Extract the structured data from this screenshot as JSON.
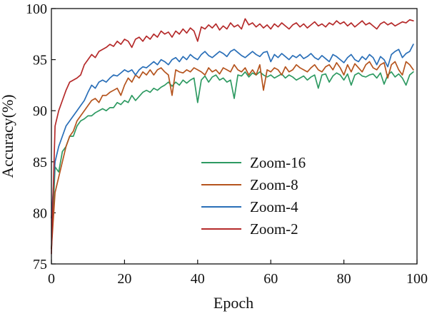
{
  "chart_data": {
    "type": "line",
    "title": "",
    "xlabel": "Epoch",
    "ylabel": "Accuracy(%)",
    "xlim": [
      0,
      100
    ],
    "ylim": [
      75,
      100
    ],
    "xticks": [
      0,
      20,
      40,
      60,
      80,
      100
    ],
    "yticks": [
      75,
      80,
      85,
      90,
      95,
      100
    ],
    "grid": false,
    "legend_position": "center",
    "x": [
      0,
      1,
      2,
      3,
      4,
      5,
      6,
      7,
      8,
      9,
      10,
      11,
      12,
      13,
      14,
      15,
      16,
      17,
      18,
      19,
      20,
      21,
      22,
      23,
      24,
      25,
      26,
      27,
      28,
      29,
      30,
      31,
      32,
      33,
      34,
      35,
      36,
      37,
      38,
      39,
      40,
      41,
      42,
      43,
      44,
      45,
      46,
      47,
      48,
      49,
      50,
      51,
      52,
      53,
      54,
      55,
      56,
      57,
      58,
      59,
      60,
      61,
      62,
      63,
      64,
      65,
      66,
      67,
      68,
      69,
      70,
      71,
      72,
      73,
      74,
      75,
      76,
      77,
      78,
      79,
      80,
      81,
      82,
      83,
      84,
      85,
      86,
      87,
      88,
      89,
      90,
      91,
      92,
      93,
      94,
      95,
      96,
      97,
      98,
      99
    ],
    "series": [
      {
        "name": "Zoom-16",
        "color": "#2e9a62",
        "values": [
          76.5,
          84.5,
          84,
          86,
          86.5,
          87.5,
          87.5,
          88.5,
          89,
          89.2,
          89.5,
          89.5,
          89.8,
          90,
          90.2,
          90,
          90.3,
          90.3,
          90.8,
          90.6,
          91,
          90.8,
          91.5,
          91,
          91.4,
          91.8,
          92,
          91.8,
          92.2,
          92,
          92.3,
          92.5,
          92.8,
          92.4,
          92.8,
          92.5,
          93,
          92.7,
          93,
          93.2,
          90.8,
          93,
          93.4,
          92.8,
          93.3,
          93.5,
          93,
          93.2,
          92.8,
          93,
          91.2,
          93.5,
          93.4,
          93.8,
          93.3,
          93.7,
          93.5,
          93.8,
          93.5,
          93.3,
          93.5,
          93.2,
          93.4,
          93.6,
          93.2,
          93.5,
          93.3,
          93,
          93.2,
          93.4,
          93,
          93.3,
          93.5,
          92.2,
          93.5,
          93.6,
          92.8,
          93.4,
          93.7,
          93.5,
          93,
          93.6,
          92.5,
          93.5,
          93.7,
          93.4,
          93.3,
          93.5,
          93.6,
          93.2,
          93.7,
          92.6,
          93.5,
          93.8,
          93.3,
          93.6,
          93.2,
          92.5,
          93.5,
          93.8
        ]
      },
      {
        "name": "Zoom-8",
        "color": "#b5541e",
        "values": [
          76.5,
          82,
          83.5,
          85,
          86.5,
          87.5,
          88,
          89,
          89.5,
          90,
          90.5,
          91,
          91.2,
          90.8,
          91.5,
          91.5,
          91.8,
          92,
          92.2,
          91.5,
          92.5,
          93.2,
          92.8,
          93.5,
          93.2,
          93.8,
          93.5,
          94,
          93.5,
          94,
          94.2,
          93.8,
          93.5,
          91.5,
          94,
          93.8,
          93.7,
          94,
          93.8,
          94.2,
          94,
          93.8,
          93.5,
          94.2,
          93.8,
          94,
          93.6,
          94.2,
          94,
          93.8,
          94.5,
          94,
          93.8,
          94.2,
          93.5,
          94,
          93.5,
          94.5,
          92,
          94,
          93.8,
          94.2,
          94,
          93.5,
          94.3,
          93.8,
          94,
          94.5,
          94.2,
          94,
          93.8,
          94.2,
          94.5,
          94,
          93.8,
          94.3,
          94.5,
          94,
          94.7,
          94.2,
          93.5,
          94.5,
          93.8,
          94.6,
          94.2,
          93.8,
          94.5,
          94.8,
          94.2,
          94,
          94.5,
          94.7,
          93.2,
          94.5,
          94.8,
          94,
          93.5,
          94.8,
          94.5,
          94
        ]
      },
      {
        "name": "Zoom-4",
        "color": "#2a6fb8",
        "values": [
          79.5,
          85,
          86.5,
          87.5,
          88.5,
          89,
          89.5,
          90,
          90.5,
          91,
          91.8,
          92.5,
          92.2,
          92.8,
          93,
          92.8,
          93.2,
          93.5,
          93.4,
          93.7,
          94,
          93.8,
          94,
          93.5,
          94,
          94.3,
          94.2,
          94.5,
          94.8,
          94.5,
          95,
          94.8,
          94.5,
          95,
          95.2,
          94.8,
          95.3,
          95,
          95.5,
          95.2,
          95,
          95.5,
          95.8,
          95.4,
          95.2,
          95.5,
          95.8,
          95.6,
          95.3,
          95.8,
          96,
          95.7,
          95.4,
          95.2,
          95.5,
          95.8,
          95.5,
          95.3,
          95.7,
          95.8,
          94.8,
          95.5,
          95.2,
          95.6,
          95.3,
          95,
          95.4,
          95.2,
          95.5,
          95.1,
          95.3,
          95.6,
          95.2,
          95,
          95.4,
          95.1,
          94.8,
          95.5,
          95.3,
          95,
          94.7,
          95.2,
          95.5,
          95,
          94.8,
          95.3,
          95,
          95.5,
          95.2,
          94.5,
          95.3,
          95,
          94.3,
          95.5,
          95.8,
          96,
          95.2,
          95.6,
          95.8,
          96.5
        ]
      },
      {
        "name": "Zoom-2",
        "color": "#b52a2a",
        "values": [
          76,
          88.5,
          90,
          91,
          92,
          92.8,
          93,
          93.2,
          93.5,
          94.5,
          95,
          95.5,
          95.2,
          95.8,
          96,
          96.2,
          96.5,
          96.3,
          96.8,
          96.5,
          97,
          96.8,
          96.2,
          97,
          97.2,
          96.8,
          97.3,
          97,
          97.5,
          97.2,
          97.8,
          97.5,
          97.7,
          97.2,
          97.8,
          97.5,
          98,
          97.6,
          98.1,
          97.8,
          96.8,
          98.2,
          98,
          98.4,
          98.1,
          98.5,
          97.9,
          98.3,
          98,
          98.6,
          98.2,
          98.4,
          98,
          99,
          98.4,
          98.6,
          98.2,
          98.5,
          98.1,
          98.4,
          98,
          98.5,
          98.2,
          98.6,
          98.3,
          98,
          98.4,
          98.6,
          98.2,
          98.5,
          98.1,
          98.4,
          98.7,
          98.3,
          98.5,
          98.2,
          98.6,
          98.4,
          98.8,
          98.5,
          98.7,
          98.3,
          98.6,
          98.2,
          98.5,
          98.8,
          98.4,
          98.6,
          98.3,
          98,
          98.5,
          98.7,
          98.4,
          98.6,
          98.3,
          98.5,
          98.7,
          98.6,
          98.9,
          98.8
        ]
      }
    ]
  }
}
